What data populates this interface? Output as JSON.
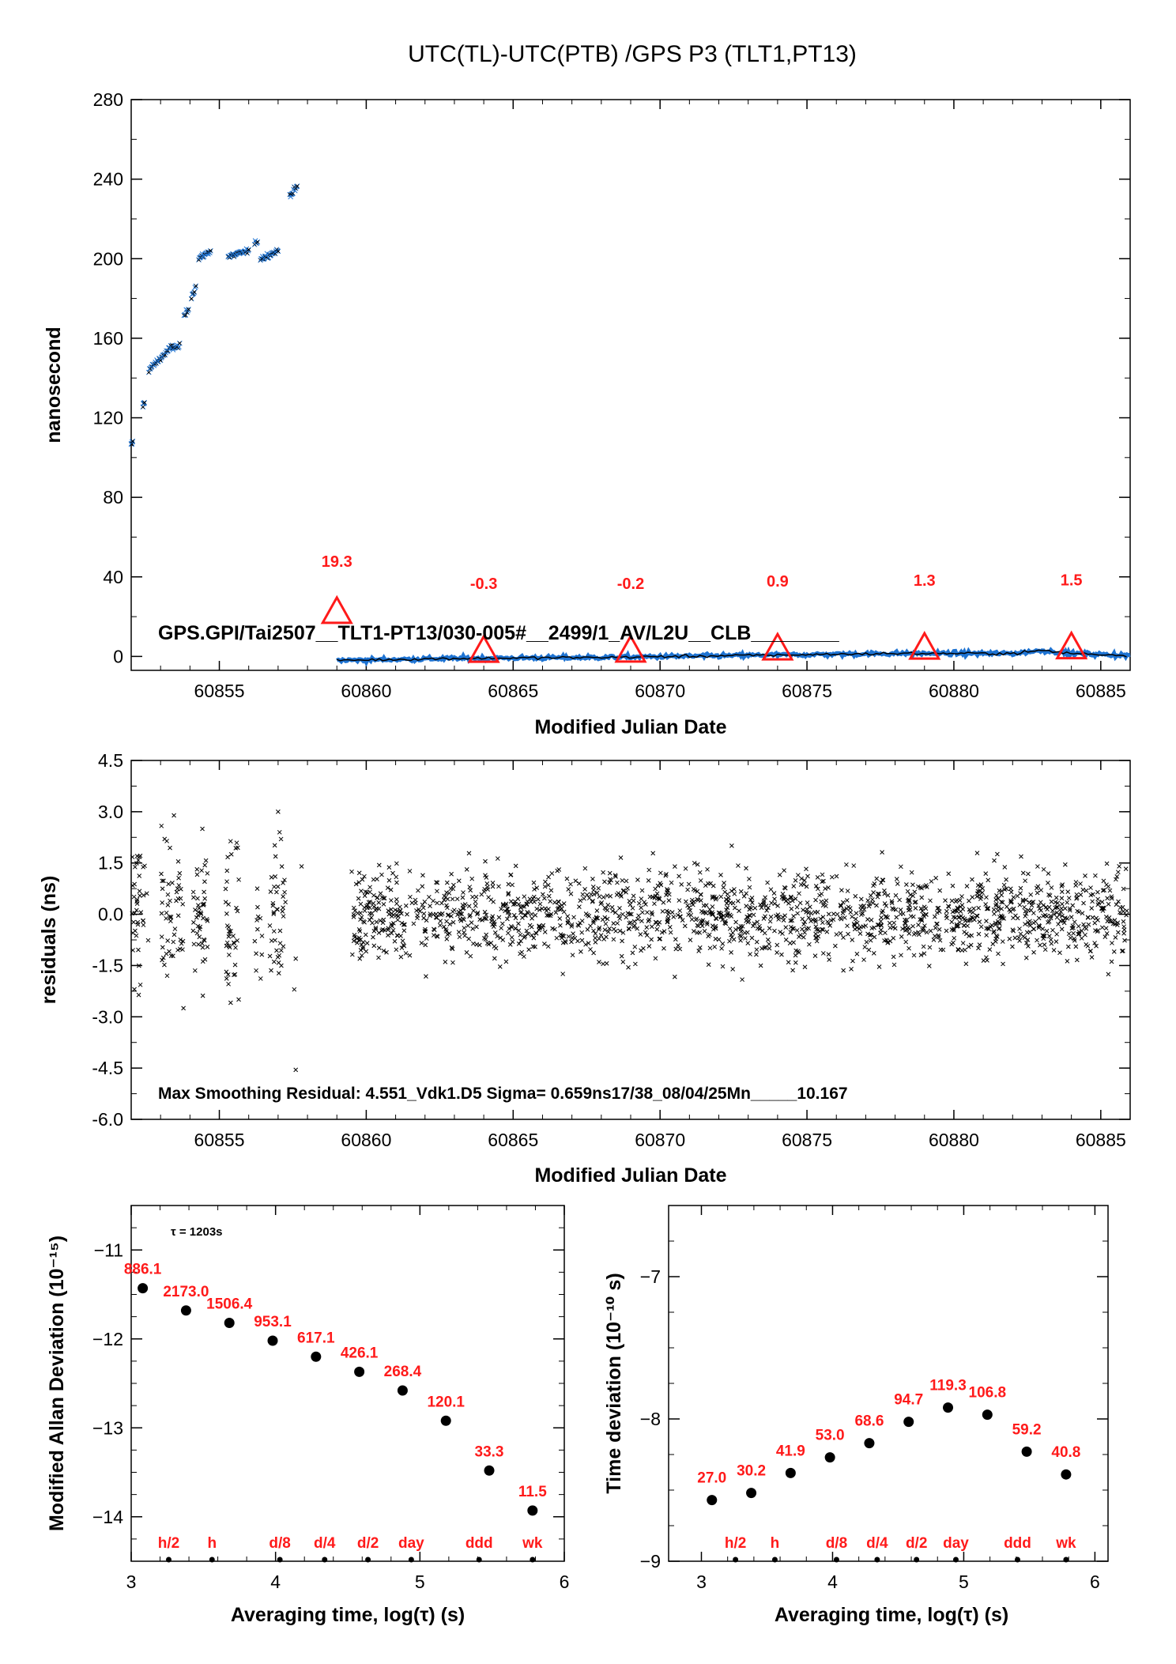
{
  "title": "UTC(TL)-UTC(PTB)  /GPS  P3  (TLT1,PT13)",
  "chart_data": [
    {
      "id": "time-series",
      "type": "scatter",
      "xlabel": "Modified Julian Date",
      "ylabel": "nanosecond",
      "xlim": [
        60852,
        60886
      ],
      "ylim": [
        -7,
        280
      ],
      "xticks": [
        "60855",
        "60860",
        "60865",
        "60870",
        "60875",
        "60880",
        "60885"
      ],
      "yticks": [
        "0",
        "40",
        "80",
        "120",
        "160",
        "200",
        "240",
        "280"
      ],
      "grid": false,
      "annotation": "GPS.GPI/Tai2507__TLT1-PT13/030-005#__2499/1_AV/L2U__CLB________",
      "series_colors": {
        "measured": "#1e73d2",
        "smoothed": "#000000",
        "markers": "#ff1a1a"
      },
      "segments": [
        {
          "x": [
            52.0,
            52.05
          ],
          "y": [
            106,
            108
          ]
        },
        {
          "x": [
            52.4,
            52.45
          ],
          "y": [
            126,
            128
          ]
        },
        {
          "x": [
            52.6,
            53.4
          ],
          "y": [
            144,
            156
          ]
        },
        {
          "x": [
            53.4,
            53.65
          ],
          "y": [
            155,
            156
          ]
        },
        {
          "x": [
            53.8,
            53.95
          ],
          "y": [
            171,
            175
          ]
        },
        {
          "x": [
            54.05,
            54.2
          ],
          "y": [
            181,
            186
          ]
        },
        {
          "x": [
            54.3,
            54.7
          ],
          "y": [
            200,
            204
          ]
        },
        {
          "x": [
            55.3,
            56.0
          ],
          "y": [
            201,
            204
          ]
        },
        {
          "x": [
            56.2,
            56.3
          ],
          "y": [
            207,
            209
          ]
        },
        {
          "x": [
            56.4,
            57.0
          ],
          "y": [
            200,
            204
          ]
        },
        {
          "x": [
            57.4,
            57.65
          ],
          "y": [
            232,
            236
          ]
        }
      ],
      "main_trend": {
        "x": [
          59.0,
          63,
          68,
          73,
          78,
          82,
          83,
          84,
          86
        ],
        "y": [
          -2,
          -1,
          -0.5,
          0.5,
          1.5,
          1.5,
          3,
          1.5,
          0.5
        ]
      },
      "markers": [
        {
          "x": 60859,
          "y": 19.3,
          "label": "19.3"
        },
        {
          "x": 60864,
          "y": -0.3,
          "label": "-0.3"
        },
        {
          "x": 60869,
          "y": -0.2,
          "label": "-0.2"
        },
        {
          "x": 60874,
          "y": 0.9,
          "label": "0.9"
        },
        {
          "x": 60879,
          "y": 1.3,
          "label": "1.3"
        },
        {
          "x": 60884,
          "y": 1.5,
          "label": "1.5"
        }
      ]
    },
    {
      "id": "residuals",
      "type": "scatter",
      "xlabel": "Modified Julian Date",
      "ylabel": "residuals (ns)",
      "xlim": [
        60852,
        60886
      ],
      "ylim": [
        -6.0,
        4.5
      ],
      "xticks": [
        "60855",
        "60860",
        "60865",
        "60870",
        "60875",
        "60880",
        "60885"
      ],
      "yticks": [
        "4.5",
        "3.0",
        "1.5",
        "0.0",
        "-1.5",
        "-3.0",
        "-4.5",
        "-6.0"
      ],
      "grid": false,
      "annotation": "Max Smoothing Residual: 4.551_Vdk1.D5  Sigma= 0.659ns17/38_08/04/25Mn_____10.167",
      "sigma_ns": 0.659,
      "max_residual_ns": 4.551
    },
    {
      "id": "mdev",
      "type": "scatter",
      "xlabel": "Averaging time, log(τ) (s)",
      "ylabel": "Modified Allan Deviation (10⁻¹⁵)",
      "xlim": [
        3,
        6
      ],
      "ylim": [
        -14.5,
        -10.5
      ],
      "xticks": [
        "3",
        "4",
        "5",
        "6"
      ],
      "yticks": [
        "−11",
        "−12",
        "−13",
        "−14"
      ],
      "tau_note": "τ = 1203s",
      "x": [
        3.08,
        3.38,
        3.68,
        3.98,
        4.28,
        4.58,
        4.88,
        5.18,
        5.48,
        5.78
      ],
      "y": [
        -11.43,
        -11.68,
        -11.82,
        -12.02,
        -12.2,
        -12.37,
        -12.58,
        -12.92,
        -13.48,
        -13.93
      ],
      "labels": [
        "886.1",
        "2173.0",
        "1506.4",
        "953.1",
        "617.1",
        "426.1",
        "268.4",
        "120.1",
        "33.3",
        "11.5"
      ],
      "ref_marks": [
        {
          "x": 3.26,
          "label": "h/2"
        },
        {
          "x": 3.56,
          "label": "h"
        },
        {
          "x": 4.03,
          "label": "d/8"
        },
        {
          "x": 4.34,
          "label": "d/4"
        },
        {
          "x": 4.64,
          "label": "d/2"
        },
        {
          "x": 4.94,
          "label": "day"
        },
        {
          "x": 5.41,
          "label": "ddd"
        },
        {
          "x": 5.78,
          "label": "wk"
        }
      ]
    },
    {
      "id": "tdev",
      "type": "scatter",
      "xlabel": "Averaging time, log(τ) (s)",
      "ylabel": "Time deviation (10⁻¹⁰ s)",
      "xlim": [
        2.75,
        6.1
      ],
      "ylim": [
        -9.0,
        -6.5
      ],
      "xticks": [
        "3",
        "4",
        "5",
        "6"
      ],
      "yticks": [
        "−7",
        "−8",
        "−9"
      ],
      "x": [
        3.08,
        3.38,
        3.68,
        3.98,
        4.28,
        4.58,
        4.88,
        5.18,
        5.48,
        5.78
      ],
      "y": [
        -8.57,
        -8.52,
        -8.38,
        -8.27,
        -8.17,
        -8.02,
        -7.92,
        -7.97,
        -8.23,
        -8.39
      ],
      "labels": [
        "27.0",
        "30.2",
        "41.9",
        "53.0",
        "68.6",
        "94.7",
        "119.3",
        "106.8",
        "59.2",
        "40.8"
      ],
      "ref_marks": [
        {
          "x": 3.26,
          "label": "h/2"
        },
        {
          "x": 3.56,
          "label": "h"
        },
        {
          "x": 4.03,
          "label": "d/8"
        },
        {
          "x": 4.34,
          "label": "d/4"
        },
        {
          "x": 4.64,
          "label": "d/2"
        },
        {
          "x": 4.94,
          "label": "day"
        },
        {
          "x": 5.41,
          "label": "ddd"
        },
        {
          "x": 5.78,
          "label": "wk"
        }
      ]
    }
  ]
}
